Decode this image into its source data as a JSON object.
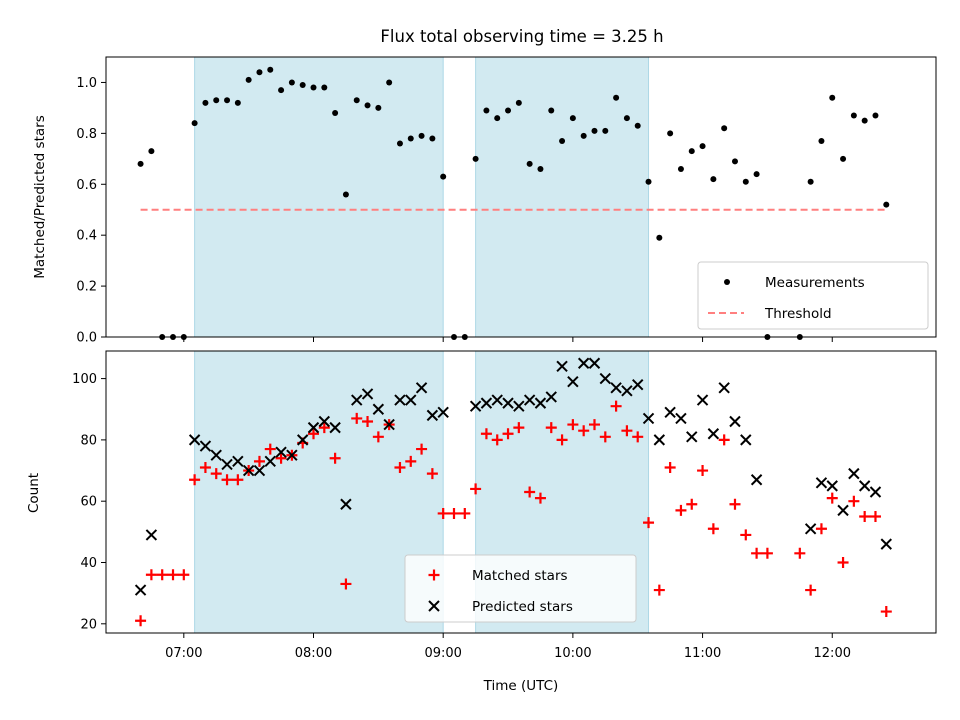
{
  "chart_data": [
    {
      "type": "scatter",
      "title": "Flux total observing time = 3.25 h",
      "ylabel": "Matched/Predicted stars",
      "xlabel": "",
      "xlim": [
        "06:24",
        "12:48"
      ],
      "ylim": [
        0,
        1.1
      ],
      "yticks": [
        "0.0",
        "0.2",
        "0.4",
        "0.6",
        "0.8",
        "1.0"
      ],
      "grid": false,
      "legend_position": "lower-right",
      "shaded_intervals": [
        [
          "07:05",
          "09:00"
        ],
        [
          "09:15",
          "10:35"
        ]
      ],
      "series": [
        {
          "name": "Measurements",
          "marker": "dot",
          "color": "#000000",
          "points": [
            [
              "06:40",
              0.68
            ],
            [
              "06:45",
              0.73
            ],
            [
              "06:50",
              0.0
            ],
            [
              "06:55",
              0.0
            ],
            [
              "07:00",
              0.0
            ],
            [
              "07:05",
              0.84
            ],
            [
              "07:10",
              0.92
            ],
            [
              "07:15",
              0.93
            ],
            [
              "07:20",
              0.93
            ],
            [
              "07:25",
              0.92
            ],
            [
              "07:30",
              1.01
            ],
            [
              "07:35",
              1.04
            ],
            [
              "07:40",
              1.05
            ],
            [
              "07:45",
              0.97
            ],
            [
              "07:50",
              1.0
            ],
            [
              "07:55",
              0.99
            ],
            [
              "08:00",
              0.98
            ],
            [
              "08:05",
              0.98
            ],
            [
              "08:10",
              0.88
            ],
            [
              "08:15",
              0.56
            ],
            [
              "08:20",
              0.93
            ],
            [
              "08:25",
              0.91
            ],
            [
              "08:30",
              0.9
            ],
            [
              "08:35",
              1.0
            ],
            [
              "08:40",
              0.76
            ],
            [
              "08:45",
              0.78
            ],
            [
              "08:50",
              0.79
            ],
            [
              "08:55",
              0.78
            ],
            [
              "09:00",
              0.63
            ],
            [
              "09:05",
              0.0
            ],
            [
              "09:10",
              0.0
            ],
            [
              "09:15",
              0.7
            ],
            [
              "09:20",
              0.89
            ],
            [
              "09:25",
              0.86
            ],
            [
              "09:30",
              0.89
            ],
            [
              "09:35",
              0.92
            ],
            [
              "09:40",
              0.68
            ],
            [
              "09:45",
              0.66
            ],
            [
              "09:50",
              0.89
            ],
            [
              "09:55",
              0.77
            ],
            [
              "10:00",
              0.86
            ],
            [
              "10:05",
              0.79
            ],
            [
              "10:10",
              0.81
            ],
            [
              "10:15",
              0.81
            ],
            [
              "10:20",
              0.94
            ],
            [
              "10:25",
              0.86
            ],
            [
              "10:30",
              0.83
            ],
            [
              "10:35",
              0.61
            ],
            [
              "10:40",
              0.39
            ],
            [
              "10:45",
              0.8
            ],
            [
              "10:50",
              0.66
            ],
            [
              "10:55",
              0.73
            ],
            [
              "11:00",
              0.75
            ],
            [
              "11:05",
              0.62
            ],
            [
              "11:10",
              0.82
            ],
            [
              "11:15",
              0.69
            ],
            [
              "11:20",
              0.61
            ],
            [
              "11:25",
              0.64
            ],
            [
              "11:30",
              0.0
            ],
            [
              "11:45",
              0.0
            ],
            [
              "11:50",
              0.61
            ],
            [
              "11:55",
              0.77
            ],
            [
              "12:00",
              0.94
            ],
            [
              "12:05",
              0.7
            ],
            [
              "12:10",
              0.87
            ],
            [
              "12:15",
              0.85
            ],
            [
              "12:20",
              0.87
            ],
            [
              "12:25",
              0.52
            ]
          ]
        },
        {
          "name": "Threshold",
          "line_style": "dashed",
          "color": "#ff7f7f",
          "points": [
            [
              "06:40",
              0.5
            ],
            [
              "12:25",
              0.5
            ]
          ]
        }
      ]
    },
    {
      "type": "scatter",
      "title": "",
      "ylabel": "Count",
      "xlabel": "Time (UTC)",
      "xlim": [
        "06:24",
        "12:48"
      ],
      "ylim": [
        17,
        109
      ],
      "yticks": [
        "20",
        "40",
        "60",
        "80",
        "100"
      ],
      "xticks": [
        "07:00",
        "08:00",
        "09:00",
        "10:00",
        "11:00",
        "12:00"
      ],
      "grid": false,
      "legend_position": "lower-center",
      "shaded_intervals": [
        [
          "07:05",
          "09:00"
        ],
        [
          "09:15",
          "10:35"
        ]
      ],
      "series": [
        {
          "name": "Matched stars",
          "marker": "plus",
          "color": "#ff0000",
          "points": [
            [
              "06:40",
              21
            ],
            [
              "06:45",
              36
            ],
            [
              "06:50",
              36
            ],
            [
              "06:55",
              36
            ],
            [
              "07:00",
              36
            ],
            [
              "07:05",
              67
            ],
            [
              "07:10",
              71
            ],
            [
              "07:15",
              69
            ],
            [
              "07:20",
              67
            ],
            [
              "07:25",
              67
            ],
            [
              "07:30",
              70
            ],
            [
              "07:35",
              73
            ],
            [
              "07:40",
              77
            ],
            [
              "07:45",
              74
            ],
            [
              "07:50",
              75
            ],
            [
              "07:55",
              79
            ],
            [
              "08:00",
              82
            ],
            [
              "08:05",
              84
            ],
            [
              "08:10",
              74
            ],
            [
              "08:15",
              33
            ],
            [
              "08:20",
              87
            ],
            [
              "08:25",
              86
            ],
            [
              "08:30",
              81
            ],
            [
              "08:35",
              85
            ],
            [
              "08:40",
              71
            ],
            [
              "08:45",
              73
            ],
            [
              "08:50",
              77
            ],
            [
              "08:55",
              69
            ],
            [
              "09:00",
              56
            ],
            [
              "09:05",
              56
            ],
            [
              "09:10",
              56
            ],
            [
              "09:15",
              64
            ],
            [
              "09:20",
              82
            ],
            [
              "09:25",
              80
            ],
            [
              "09:30",
              82
            ],
            [
              "09:35",
              84
            ],
            [
              "09:40",
              63
            ],
            [
              "09:45",
              61
            ],
            [
              "09:50",
              84
            ],
            [
              "09:55",
              80
            ],
            [
              "10:00",
              85
            ],
            [
              "10:05",
              83
            ],
            [
              "10:10",
              85
            ],
            [
              "10:15",
              81
            ],
            [
              "10:20",
              91
            ],
            [
              "10:25",
              83
            ],
            [
              "10:30",
              81
            ],
            [
              "10:35",
              53
            ],
            [
              "10:40",
              31
            ],
            [
              "10:45",
              71
            ],
            [
              "10:50",
              57
            ],
            [
              "10:55",
              59
            ],
            [
              "11:00",
              70
            ],
            [
              "11:05",
              51
            ],
            [
              "11:10",
              80
            ],
            [
              "11:15",
              59
            ],
            [
              "11:20",
              49
            ],
            [
              "11:25",
              43
            ],
            [
              "11:30",
              43
            ],
            [
              "11:45",
              43
            ],
            [
              "11:50",
              31
            ],
            [
              "11:55",
              51
            ],
            [
              "12:00",
              61
            ],
            [
              "12:05",
              40
            ],
            [
              "12:10",
              60
            ],
            [
              "12:15",
              55
            ],
            [
              "12:20",
              55
            ],
            [
              "12:25",
              24
            ]
          ]
        },
        {
          "name": "Predicted stars",
          "marker": "x",
          "color": "#000000",
          "points": [
            [
              "06:40",
              31
            ],
            [
              "06:45",
              49
            ],
            [
              "07:05",
              80
            ],
            [
              "07:10",
              78
            ],
            [
              "07:15",
              75
            ],
            [
              "07:20",
              72
            ],
            [
              "07:25",
              73
            ],
            [
              "07:30",
              70
            ],
            [
              "07:35",
              70
            ],
            [
              "07:40",
              73
            ],
            [
              "07:45",
              76
            ],
            [
              "07:50",
              75
            ],
            [
              "07:55",
              80
            ],
            [
              "08:00",
              84
            ],
            [
              "08:05",
              86
            ],
            [
              "08:10",
              84
            ],
            [
              "08:15",
              59
            ],
            [
              "08:20",
              93
            ],
            [
              "08:25",
              95
            ],
            [
              "08:30",
              90
            ],
            [
              "08:35",
              85
            ],
            [
              "08:40",
              93
            ],
            [
              "08:45",
              93
            ],
            [
              "08:50",
              97
            ],
            [
              "08:55",
              88
            ],
            [
              "09:00",
              89
            ],
            [
              "09:15",
              91
            ],
            [
              "09:20",
              92
            ],
            [
              "09:25",
              93
            ],
            [
              "09:30",
              92
            ],
            [
              "09:35",
              91
            ],
            [
              "09:40",
              93
            ],
            [
              "09:45",
              92
            ],
            [
              "09:50",
              94
            ],
            [
              "09:55",
              104
            ],
            [
              "10:00",
              99
            ],
            [
              "10:05",
              105
            ],
            [
              "10:10",
              105
            ],
            [
              "10:15",
              100
            ],
            [
              "10:20",
              97
            ],
            [
              "10:25",
              96
            ],
            [
              "10:30",
              98
            ],
            [
              "10:35",
              87
            ],
            [
              "10:40",
              80
            ],
            [
              "10:45",
              89
            ],
            [
              "10:50",
              87
            ],
            [
              "10:55",
              81
            ],
            [
              "11:00",
              93
            ],
            [
              "11:05",
              82
            ],
            [
              "11:10",
              97
            ],
            [
              "11:15",
              86
            ],
            [
              "11:20",
              80
            ],
            [
              "11:25",
              67
            ],
            [
              "11:50",
              51
            ],
            [
              "11:55",
              66
            ],
            [
              "12:00",
              65
            ],
            [
              "12:05",
              57
            ],
            [
              "12:10",
              69
            ],
            [
              "12:15",
              65
            ],
            [
              "12:20",
              63
            ],
            [
              "12:25",
              46
            ]
          ]
        }
      ]
    }
  ],
  "colors": {
    "shade": "#add8e6",
    "measurement": "#000000",
    "threshold": "#ff7f7f",
    "matched": "#ff0000",
    "predicted": "#000000"
  }
}
